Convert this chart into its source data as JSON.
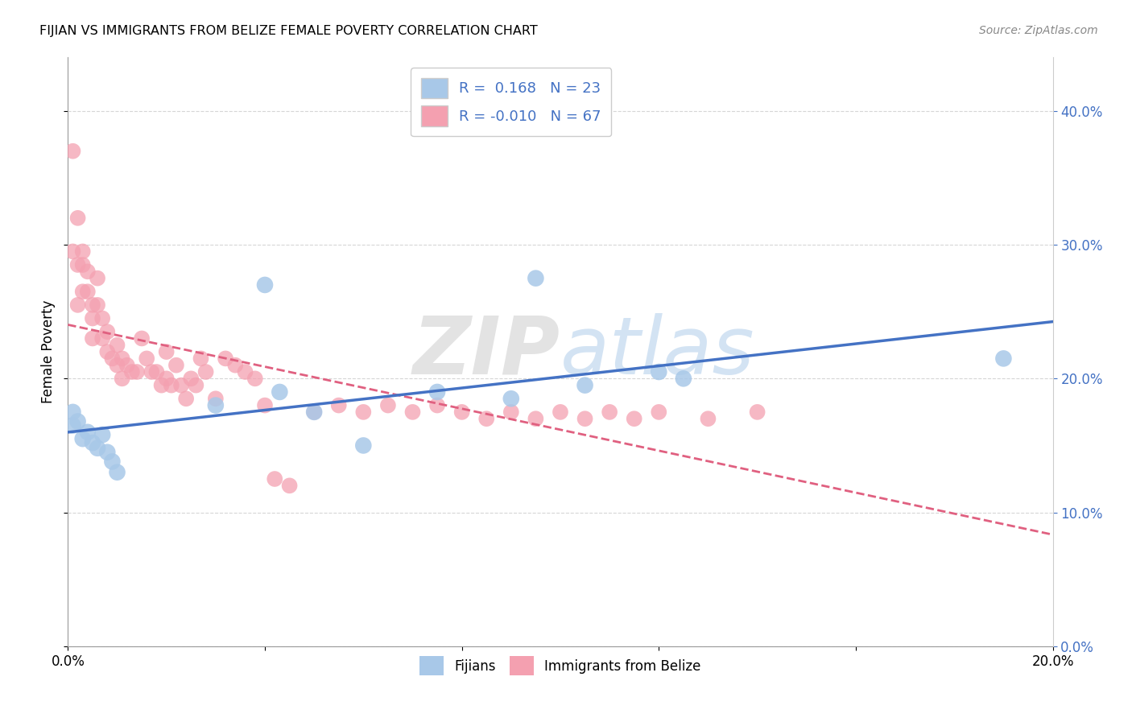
{
  "title": "FIJIAN VS IMMIGRANTS FROM BELIZE FEMALE POVERTY CORRELATION CHART",
  "source": "Source: ZipAtlas.com",
  "ylabel": "Female Poverty",
  "xlim": [
    0.0,
    0.2
  ],
  "ylim": [
    0.0,
    0.44
  ],
  "fijian_R": 0.168,
  "fijian_N": 23,
  "belize_R": -0.01,
  "belize_N": 67,
  "fijian_color": "#a8c8e8",
  "belize_color": "#f4a0b0",
  "fijian_line_color": "#4472c4",
  "belize_line_color": "#e06080",
  "watermark_zip": "ZIP",
  "watermark_atlas": "atlas",
  "fijian_x": [
    0.001,
    0.001,
    0.002,
    0.003,
    0.004,
    0.005,
    0.006,
    0.007,
    0.008,
    0.009,
    0.01,
    0.03,
    0.04,
    0.043,
    0.05,
    0.06,
    0.075,
    0.09,
    0.095,
    0.105,
    0.12,
    0.125,
    0.19
  ],
  "fijian_y": [
    0.175,
    0.165,
    0.168,
    0.155,
    0.16,
    0.152,
    0.148,
    0.158,
    0.145,
    0.138,
    0.13,
    0.18,
    0.27,
    0.19,
    0.175,
    0.15,
    0.19,
    0.185,
    0.275,
    0.195,
    0.205,
    0.2,
    0.215
  ],
  "belize_x": [
    0.001,
    0.001,
    0.002,
    0.002,
    0.002,
    0.003,
    0.003,
    0.003,
    0.004,
    0.004,
    0.005,
    0.005,
    0.005,
    0.006,
    0.006,
    0.007,
    0.007,
    0.008,
    0.008,
    0.009,
    0.01,
    0.01,
    0.011,
    0.011,
    0.012,
    0.013,
    0.014,
    0.015,
    0.016,
    0.017,
    0.018,
    0.019,
    0.02,
    0.02,
    0.021,
    0.022,
    0.023,
    0.024,
    0.025,
    0.026,
    0.027,
    0.028,
    0.03,
    0.032,
    0.034,
    0.036,
    0.038,
    0.04,
    0.042,
    0.045,
    0.05,
    0.055,
    0.06,
    0.065,
    0.07,
    0.075,
    0.08,
    0.085,
    0.09,
    0.095,
    0.1,
    0.105,
    0.11,
    0.115,
    0.12,
    0.13,
    0.14
  ],
  "belize_y": [
    0.37,
    0.295,
    0.32,
    0.285,
    0.255,
    0.295,
    0.285,
    0.265,
    0.28,
    0.265,
    0.255,
    0.245,
    0.23,
    0.275,
    0.255,
    0.245,
    0.23,
    0.235,
    0.22,
    0.215,
    0.225,
    0.21,
    0.215,
    0.2,
    0.21,
    0.205,
    0.205,
    0.23,
    0.215,
    0.205,
    0.205,
    0.195,
    0.22,
    0.2,
    0.195,
    0.21,
    0.195,
    0.185,
    0.2,
    0.195,
    0.215,
    0.205,
    0.185,
    0.215,
    0.21,
    0.205,
    0.2,
    0.18,
    0.125,
    0.12,
    0.175,
    0.18,
    0.175,
    0.18,
    0.175,
    0.18,
    0.175,
    0.17,
    0.175,
    0.17,
    0.175,
    0.17,
    0.175,
    0.17,
    0.175,
    0.17,
    0.175
  ]
}
